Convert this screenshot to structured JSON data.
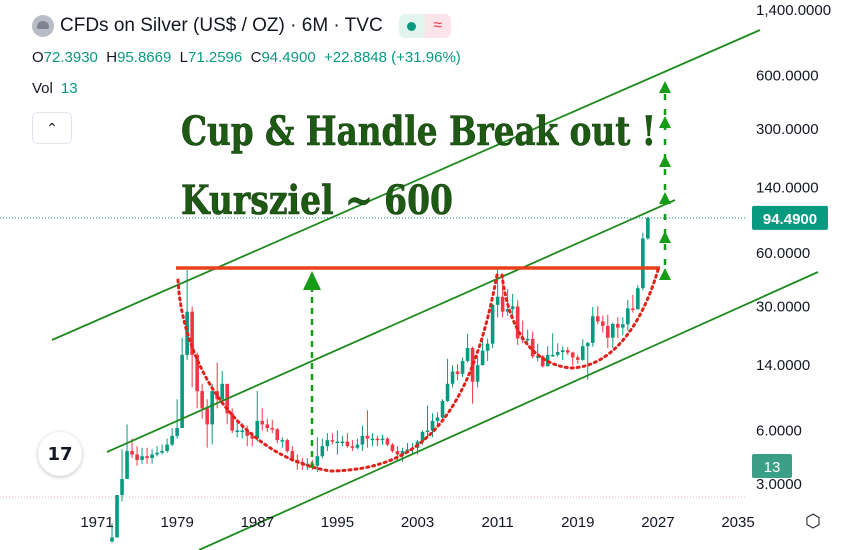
{
  "header": {
    "title": "CFDs on Silver (US$ / OZ) · 6M · TVC",
    "ohlc": {
      "o_label": "O",
      "o": "72.3930",
      "h_label": "H",
      "h": "95.8669",
      "l_label": "L",
      "l": "71.2596",
      "c_label": "C",
      "c": "94.4900",
      "change": "+22.8848 (+31.96%)"
    },
    "vol_label": "Vol",
    "vol_value": "13"
  },
  "annotations": {
    "headline_1": "Cup & Handle Break out !",
    "headline_2": "Kursziel ~ 600"
  },
  "colors": {
    "up": "#089981",
    "down": "#f23645",
    "channel": "#1e8a1e",
    "resistance": "#e8411b",
    "cup": "#e0221b",
    "target_arrow": "#169c16",
    "headline": "#1e5a14"
  },
  "chart_data": {
    "type": "candlestick",
    "scale": "log",
    "x_ticks": [
      "1971",
      "1979",
      "1987",
      "1995",
      "2003",
      "2011",
      "2019",
      "2027",
      "2035"
    ],
    "y_ticks": [
      "1,400.0000",
      "600.0000",
      "300.0000",
      "140.0000",
      "60.0000",
      "30.0000",
      "14.0000",
      "6.0000",
      "3.0000"
    ],
    "last_price_label": "94.4900",
    "volume_label": "13",
    "ylim": [
      2.5,
      1400
    ],
    "xlim": [
      1965,
      2037
    ],
    "resistance_level": 50,
    "target": 600,
    "series": [
      {
        "name": "",
        "values": [
          [
            1972.5,
            1.5,
            1.4,
            1.8
          ],
          [
            1973.0,
            2.6,
            1.6,
            2.6
          ],
          [
            1973.5,
            3.2,
            2.4,
            4.7
          ],
          [
            1974.0,
            4.6,
            3.2,
            6.5
          ],
          [
            1974.5,
            4.4,
            4.2,
            5.4
          ],
          [
            1975.0,
            4.1,
            3.8,
            4.9
          ],
          [
            1975.5,
            4.3,
            3.9,
            4.8
          ],
          [
            1976.0,
            4.2,
            3.9,
            4.8
          ],
          [
            1976.5,
            4.4,
            3.9,
            4.7
          ],
          [
            1977.0,
            4.5,
            4.3,
            4.9
          ],
          [
            1977.5,
            4.6,
            4.4,
            5.0
          ],
          [
            1978.0,
            5.0,
            4.5,
            5.4
          ],
          [
            1978.5,
            5.6,
            4.9,
            6.2
          ],
          [
            1979.0,
            6.2,
            5.4,
            9.0
          ],
          [
            1979.5,
            16.0,
            6.4,
            20.0
          ],
          [
            1980.0,
            28.0,
            15.0,
            48.0
          ],
          [
            1980.5,
            16.0,
            10.5,
            30.0
          ],
          [
            1981.0,
            10.0,
            8.0,
            16.5
          ],
          [
            1981.5,
            8.0,
            7.0,
            11.0
          ],
          [
            1982.0,
            6.5,
            4.8,
            9.0
          ],
          [
            1982.5,
            10.0,
            5.0,
            11.0
          ],
          [
            1983.0,
            9.0,
            8.0,
            14.5
          ],
          [
            1983.5,
            11.0,
            8.5,
            13.0
          ],
          [
            1984.0,
            7.5,
            6.5,
            10.0
          ],
          [
            1984.5,
            6.0,
            5.8,
            8.0
          ],
          [
            1985.0,
            6.0,
            5.5,
            6.8
          ],
          [
            1985.5,
            6.0,
            5.4,
            6.6
          ],
          [
            1986.0,
            5.6,
            4.9,
            6.4
          ],
          [
            1986.5,
            5.4,
            4.9,
            5.9
          ],
          [
            1987.0,
            6.8,
            5.2,
            10.0
          ],
          [
            1987.5,
            6.5,
            6.0,
            8.0
          ],
          [
            1988.0,
            6.2,
            5.9,
            7.0
          ],
          [
            1988.5,
            6.1,
            5.8,
            6.9
          ],
          [
            1989.0,
            5.3,
            5.1,
            6.2
          ],
          [
            1989.5,
            5.3,
            4.8,
            5.5
          ],
          [
            1990.0,
            4.6,
            4.5,
            5.4
          ],
          [
            1990.5,
            4.1,
            4.0,
            4.9
          ],
          [
            1991.0,
            4.0,
            3.6,
            4.4
          ],
          [
            1991.5,
            3.9,
            3.6,
            4.2
          ],
          [
            1992.0,
            3.9,
            3.6,
            4.2
          ],
          [
            1992.5,
            3.8,
            3.6,
            4.1
          ],
          [
            1993.0,
            4.3,
            3.5,
            5.5
          ],
          [
            1993.5,
            4.9,
            4.2,
            5.4
          ],
          [
            1994.0,
            5.3,
            4.6,
            5.8
          ],
          [
            1994.5,
            5.2,
            5.0,
            5.8
          ],
          [
            1995.0,
            5.2,
            4.4,
            6.0
          ],
          [
            1995.5,
            5.2,
            4.9,
            5.6
          ],
          [
            1996.0,
            4.9,
            4.8,
            5.8
          ],
          [
            1996.5,
            4.8,
            4.6,
            5.3
          ],
          [
            1997.0,
            5.0,
            4.7,
            5.4
          ],
          [
            1997.5,
            5.6,
            4.6,
            6.4
          ],
          [
            1998.0,
            5.4,
            4.8,
            7.8
          ],
          [
            1998.5,
            5.4,
            4.9,
            5.8
          ],
          [
            1999.0,
            5.3,
            4.9,
            5.6
          ],
          [
            1999.5,
            5.4,
            5.0,
            5.7
          ],
          [
            2000.0,
            5.0,
            4.9,
            5.5
          ],
          [
            2000.5,
            4.6,
            4.5,
            5.1
          ],
          [
            2001.0,
            4.4,
            4.1,
            4.9
          ],
          [
            2001.5,
            4.6,
            4.0,
            4.8
          ],
          [
            2002.0,
            4.7,
            4.5,
            5.1
          ],
          [
            2002.5,
            4.8,
            4.4,
            5.1
          ],
          [
            2003.0,
            5.2,
            4.4,
            5.3
          ],
          [
            2003.5,
            5.9,
            5.0,
            6.0
          ],
          [
            2004.0,
            6.0,
            5.5,
            8.3
          ],
          [
            2004.5,
            6.8,
            5.5,
            7.5
          ],
          [
            2005.0,
            7.1,
            6.3,
            7.6
          ],
          [
            2005.5,
            8.8,
            6.8,
            9.0
          ],
          [
            2006.0,
            11.0,
            8.7,
            15.2
          ],
          [
            2006.5,
            12.9,
            10.5,
            14.0
          ],
          [
            2007.0,
            12.5,
            11.5,
            14.2
          ],
          [
            2007.5,
            14.8,
            12.0,
            15.5
          ],
          [
            2008.0,
            17.5,
            14.5,
            21.0
          ],
          [
            2008.5,
            11.3,
            8.5,
            17.8
          ],
          [
            2009.0,
            14.0,
            10.5,
            15.8
          ],
          [
            2009.5,
            16.9,
            14.0,
            19.3
          ],
          [
            2010.0,
            18.5,
            14.8,
            19.8
          ],
          [
            2010.5,
            30.6,
            17.5,
            31.0
          ],
          [
            2011.0,
            34.0,
            26.0,
            49.8
          ],
          [
            2011.5,
            28.0,
            26.0,
            44.0
          ],
          [
            2012.0,
            29.0,
            26.5,
            37.5
          ],
          [
            2012.5,
            30.0,
            26.0,
            35.3
          ],
          [
            2013.0,
            19.8,
            18.2,
            32.5
          ],
          [
            2013.5,
            19.6,
            18.6,
            25.0
          ],
          [
            2014.0,
            19.7,
            18.8,
            22.2
          ],
          [
            2014.5,
            15.7,
            15.3,
            21.6
          ],
          [
            2015.0,
            15.7,
            14.7,
            18.5
          ],
          [
            2015.5,
            13.8,
            13.6,
            16.0
          ],
          [
            2016.0,
            16.0,
            13.8,
            17.9
          ],
          [
            2016.5,
            16.0,
            15.6,
            21.2
          ],
          [
            2017.0,
            16.6,
            15.6,
            18.6
          ],
          [
            2017.5,
            17.0,
            15.0,
            17.9
          ],
          [
            2018.0,
            16.5,
            16.0,
            17.7
          ],
          [
            2018.5,
            15.5,
            13.9,
            16.7
          ],
          [
            2019.0,
            15.0,
            14.3,
            16.0
          ],
          [
            2019.5,
            17.9,
            14.8,
            19.6
          ],
          [
            2020.0,
            18.7,
            11.6,
            19.0
          ],
          [
            2020.5,
            26.4,
            17.8,
            29.8
          ],
          [
            2021.0,
            24.7,
            23.8,
            30.1
          ],
          [
            2021.5,
            23.3,
            21.4,
            26.6
          ],
          [
            2022.0,
            20.0,
            17.5,
            26.9
          ],
          [
            2022.5,
            23.9,
            17.5,
            24.3
          ],
          [
            2023.0,
            22.8,
            19.9,
            26.1
          ],
          [
            2023.5,
            23.8,
            20.7,
            26.1
          ],
          [
            2024.0,
            29.2,
            21.9,
            32.6
          ],
          [
            2024.5,
            28.9,
            27.7,
            34.8
          ],
          [
            2025.0,
            38.0,
            28.8,
            39.5
          ],
          [
            2025.5,
            72.4,
            37.0,
            78.0
          ],
          [
            2026.0,
            94.5,
            71.3,
            95.9
          ]
        ]
      }
    ]
  }
}
